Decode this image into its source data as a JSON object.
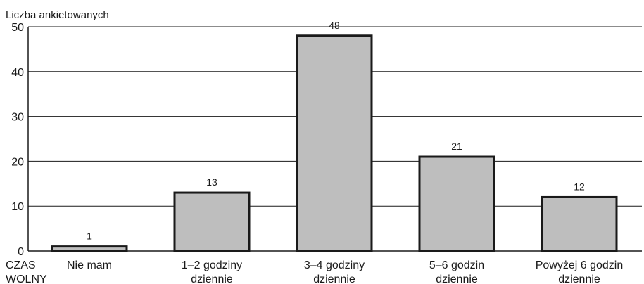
{
  "chart_data": {
    "type": "bar",
    "ylabel": "Liczba ankietowanych",
    "xlabel": [
      "CZAS",
      "WOLNY"
    ],
    "categories": [
      [
        "Nie mam"
      ],
      [
        "1–2 godziny",
        "dziennie"
      ],
      [
        "3–4 godziny",
        "dziennie"
      ],
      [
        "5–6 godzin",
        "dziennie"
      ],
      [
        "Powyżej 6 godzin",
        "dziennie"
      ]
    ],
    "values": [
      1,
      13,
      48,
      21,
      12
    ],
    "ylim": [
      0,
      50
    ],
    "yticks": [
      0,
      10,
      20,
      30,
      40,
      50
    ],
    "grid": true,
    "colors": {
      "bar_fill": "#bebebe",
      "bar_stroke": "#1a1a1a",
      "grid": "#1a1a1a"
    }
  }
}
